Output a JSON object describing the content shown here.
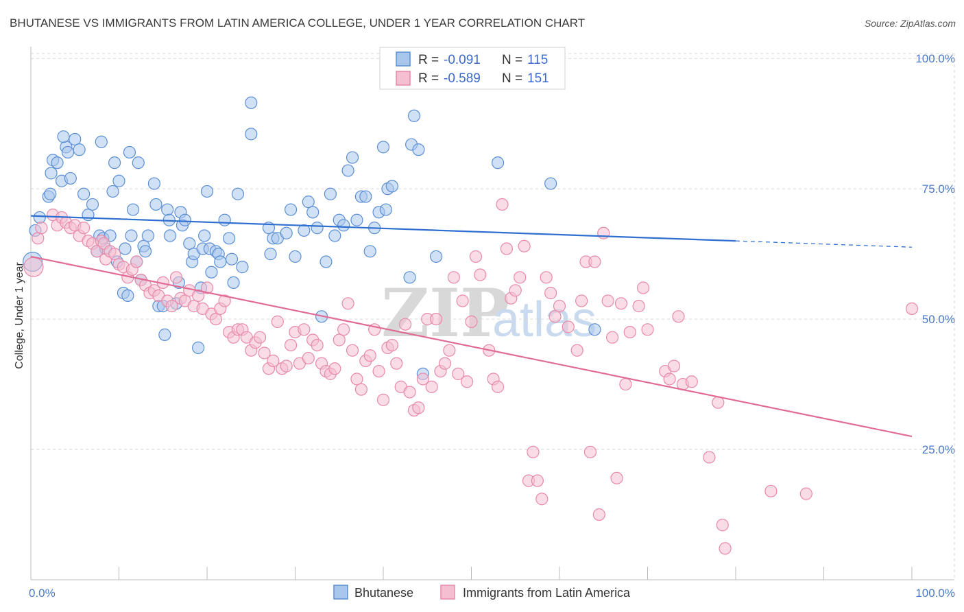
{
  "title": "BHUTANESE VS IMMIGRANTS FROM LATIN AMERICA COLLEGE, UNDER 1 YEAR CORRELATION CHART",
  "source": "Source: ZipAtlas.com",
  "watermark": {
    "zip": "ZIP",
    "atlas": "atlas"
  },
  "colors": {
    "blue": "#5b8fd4",
    "blue_fill": "#a9c6ec",
    "blue_line": "#2f6fd0",
    "pink": "#e889a8",
    "pink_fill": "#f4bfd1",
    "pink_line": "#e06b96",
    "grid": "#d6d6d6",
    "tick_text": "#4a78c8"
  },
  "legend": {
    "r_label": "R =",
    "n_label": "N =",
    "rows": [
      {
        "r": "-0.091",
        "n": "115",
        "series": "blue"
      },
      {
        "r": "-0.589",
        "n": "151",
        "series": "pink"
      }
    ]
  },
  "bottom_legend": [
    "Bhutanese",
    "Immigrants from Latin America"
  ],
  "chart_data": {
    "type": "scatter",
    "title": "BHUTANESE VS IMMIGRANTS FROM LATIN AMERICA COLLEGE, UNDER 1 YEAR CORRELATION CHART",
    "xlabel": "",
    "ylabel": "College, Under 1 year",
    "xlim": [
      0,
      100
    ],
    "ylim": [
      0,
      102
    ],
    "x_tick_labels": [
      "0.0%",
      "100.0%"
    ],
    "y_tick_labels": [
      "25.0%",
      "50.0%",
      "75.0%",
      "100.0%"
    ],
    "y_ticks": [
      25,
      50,
      75,
      100
    ],
    "grid": true,
    "legend_placement": "top-center",
    "series": [
      {
        "name": "Bhutanese",
        "color": "blue",
        "r": -0.091,
        "n": 115,
        "trend": {
          "x0": 0,
          "y0": 69.8,
          "x1": 80,
          "y1": 65.0,
          "dash_to": 100,
          "dash_y": 63.8
        },
        "points": [
          [
            0.2,
            61
          ],
          [
            0.5,
            67
          ],
          [
            1,
            69.5
          ],
          [
            2,
            73.5
          ],
          [
            2.2,
            74
          ],
          [
            2.3,
            78
          ],
          [
            2.5,
            80.5
          ],
          [
            3,
            80
          ],
          [
            3.5,
            76.5
          ],
          [
            4,
            83
          ],
          [
            3.7,
            85
          ],
          [
            4.2,
            82
          ],
          [
            4.5,
            77
          ],
          [
            5,
            84.5
          ],
          [
            5.5,
            82.5
          ],
          [
            6,
            74
          ],
          [
            6.5,
            70
          ],
          [
            7,
            72
          ],
          [
            7.5,
            63
          ],
          [
            7.8,
            66
          ],
          [
            8,
            84
          ],
          [
            8.5,
            63.5
          ],
          [
            8.2,
            65.5
          ],
          [
            9,
            66
          ],
          [
            9.3,
            74.5
          ],
          [
            9.5,
            80
          ],
          [
            9.8,
            61
          ],
          [
            10,
            76.5
          ],
          [
            10.5,
            55
          ],
          [
            10.7,
            63.5
          ],
          [
            11,
            54.5
          ],
          [
            11.2,
            82
          ],
          [
            11.4,
            66
          ],
          [
            11.6,
            71
          ],
          [
            12,
            61
          ],
          [
            12.2,
            80
          ],
          [
            12.5,
            57.5
          ],
          [
            12.8,
            64
          ],
          [
            13,
            63
          ],
          [
            13.3,
            66
          ],
          [
            14,
            76
          ],
          [
            14.2,
            72
          ],
          [
            14.5,
            52.5
          ],
          [
            15,
            52.5
          ],
          [
            15.2,
            47
          ],
          [
            15.5,
            71
          ],
          [
            15.7,
            69
          ],
          [
            15.8,
            66
          ],
          [
            16.5,
            53
          ],
          [
            16.8,
            57
          ],
          [
            17,
            70.5
          ],
          [
            17.2,
            68
          ],
          [
            17.5,
            69
          ],
          [
            18,
            64.5
          ],
          [
            18.3,
            61
          ],
          [
            18.5,
            62.5
          ],
          [
            19,
            44.5
          ],
          [
            19.3,
            56
          ],
          [
            19.5,
            63.5
          ],
          [
            19.7,
            66
          ],
          [
            20,
            74.5
          ],
          [
            20.3,
            63.5
          ],
          [
            20.5,
            59
          ],
          [
            21,
            63
          ],
          [
            21.3,
            62.5
          ],
          [
            21.5,
            61
          ],
          [
            22,
            69
          ],
          [
            22.5,
            65.5
          ],
          [
            22.8,
            61.5
          ],
          [
            23,
            57
          ],
          [
            23.5,
            74
          ],
          [
            24,
            60
          ],
          [
            25,
            85.5
          ],
          [
            25,
            91.5
          ],
          [
            27,
            67.5
          ],
          [
            27.2,
            62.5
          ],
          [
            27.5,
            65.5
          ],
          [
            28,
            65.5
          ],
          [
            29,
            66.5
          ],
          [
            29.5,
            71
          ],
          [
            30,
            62
          ],
          [
            31,
            67
          ],
          [
            31.5,
            72.5
          ],
          [
            32,
            70.5
          ],
          [
            32.5,
            67.5
          ],
          [
            33,
            50.5
          ],
          [
            33.5,
            61
          ],
          [
            34,
            74
          ],
          [
            34.5,
            66
          ],
          [
            35,
            69
          ],
          [
            35.5,
            68
          ],
          [
            36,
            78.5
          ],
          [
            36.5,
            81
          ],
          [
            37,
            69
          ],
          [
            37.5,
            73.5
          ],
          [
            38,
            73.5
          ],
          [
            38.5,
            63
          ],
          [
            39,
            67.5
          ],
          [
            39.5,
            70.5
          ],
          [
            40,
            83
          ],
          [
            40.3,
            71
          ],
          [
            40.5,
            75
          ],
          [
            41,
            75.5
          ],
          [
            43,
            58
          ],
          [
            43.2,
            83.5
          ],
          [
            43.5,
            89
          ],
          [
            44,
            82.5
          ],
          [
            44.5,
            39.5
          ],
          [
            46,
            62
          ],
          [
            53,
            80
          ],
          [
            59,
            76
          ],
          [
            64,
            48
          ]
        ]
      },
      {
        "name": "Immigrants from Latin America",
        "color": "pink",
        "r": -0.589,
        "n": 151,
        "trend": {
          "x0": 0,
          "y0": 62,
          "x1": 100,
          "y1": 27.5
        },
        "points": [
          [
            0.3,
            60
          ],
          [
            0.8,
            65.5
          ],
          [
            1.2,
            67.5
          ],
          [
            2.5,
            70
          ],
          [
            3,
            68
          ],
          [
            3.5,
            69.5
          ],
          [
            4,
            68.5
          ],
          [
            4.5,
            67.5
          ],
          [
            5,
            68
          ],
          [
            5.5,
            66
          ],
          [
            6,
            67.5
          ],
          [
            6.5,
            65
          ],
          [
            7,
            64.5
          ],
          [
            7.5,
            63
          ],
          [
            8,
            65
          ],
          [
            8.3,
            64.5
          ],
          [
            8.5,
            61.5
          ],
          [
            9,
            63
          ],
          [
            9.5,
            62.5
          ],
          [
            10,
            60.5
          ],
          [
            10.5,
            60
          ],
          [
            11,
            58
          ],
          [
            11.5,
            59.5
          ],
          [
            12,
            61
          ],
          [
            12.5,
            57.5
          ],
          [
            13,
            56.5
          ],
          [
            13.5,
            55
          ],
          [
            14,
            55.5
          ],
          [
            14.5,
            54.5
          ],
          [
            15,
            57
          ],
          [
            15.5,
            53.5
          ],
          [
            16,
            52.5
          ],
          [
            16.5,
            58
          ],
          [
            17,
            54
          ],
          [
            17.5,
            53.5
          ],
          [
            18,
            55.5
          ],
          [
            18.5,
            52.5
          ],
          [
            19,
            54.5
          ],
          [
            19.5,
            52
          ],
          [
            20,
            56
          ],
          [
            20.5,
            51
          ],
          [
            21,
            50
          ],
          [
            21.5,
            52
          ],
          [
            22,
            53.5
          ],
          [
            22.5,
            47.5
          ],
          [
            23,
            46.5
          ],
          [
            23.5,
            48
          ],
          [
            24,
            48
          ],
          [
            24.5,
            46.5
          ],
          [
            25,
            44
          ],
          [
            25.5,
            45.5
          ],
          [
            26,
            46.5
          ],
          [
            26.5,
            43.5
          ],
          [
            27,
            40.5
          ],
          [
            27.5,
            42
          ],
          [
            28,
            49.5
          ],
          [
            28.5,
            40.5
          ],
          [
            29,
            41
          ],
          [
            29.5,
            45
          ],
          [
            30,
            47.5
          ],
          [
            30.5,
            41.5
          ],
          [
            31,
            48
          ],
          [
            31.5,
            42.5
          ],
          [
            32,
            46
          ],
          [
            32.5,
            45
          ],
          [
            33,
            41.5
          ],
          [
            33.5,
            40
          ],
          [
            34,
            39.5
          ],
          [
            34.5,
            40.5
          ],
          [
            35,
            46
          ],
          [
            35.5,
            48
          ],
          [
            36,
            53
          ],
          [
            36.5,
            44
          ],
          [
            37,
            38.5
          ],
          [
            37.5,
            36.5
          ],
          [
            38,
            42
          ],
          [
            38.5,
            43
          ],
          [
            39,
            48
          ],
          [
            39.5,
            40
          ],
          [
            40,
            34.5
          ],
          [
            40.5,
            44.5
          ],
          [
            41,
            45
          ],
          [
            41.5,
            41.5
          ],
          [
            42,
            37
          ],
          [
            42.5,
            49
          ],
          [
            43,
            36
          ],
          [
            43.5,
            32.5
          ],
          [
            44,
            33
          ],
          [
            44.5,
            38.5
          ],
          [
            45,
            50
          ],
          [
            45.5,
            37
          ],
          [
            46,
            50
          ],
          [
            46.5,
            40
          ],
          [
            47,
            41.5
          ],
          [
            47.5,
            44
          ],
          [
            48,
            58
          ],
          [
            48.5,
            39.5
          ],
          [
            49,
            53.5
          ],
          [
            49.5,
            38
          ],
          [
            50,
            49.5
          ],
          [
            50.5,
            62
          ],
          [
            51,
            58.5
          ],
          [
            52,
            44
          ],
          [
            52.5,
            38.5
          ],
          [
            53,
            37
          ],
          [
            53.5,
            72
          ],
          [
            54,
            63.5
          ],
          [
            54.5,
            54
          ],
          [
            55,
            55.5
          ],
          [
            55.5,
            58
          ],
          [
            56,
            64
          ],
          [
            56.5,
            19
          ],
          [
            57,
            24.5
          ],
          [
            57.5,
            19
          ],
          [
            58,
            15.5
          ],
          [
            58.5,
            58
          ],
          [
            59,
            55
          ],
          [
            59.5,
            50.5
          ],
          [
            60,
            52.5
          ],
          [
            61,
            48.5
          ],
          [
            62,
            44
          ],
          [
            62.5,
            53.5
          ],
          [
            63,
            61
          ],
          [
            63.5,
            24.5
          ],
          [
            64,
            61
          ],
          [
            64.5,
            12.5
          ],
          [
            65,
            66.5
          ],
          [
            65.5,
            53.5
          ],
          [
            66,
            46.5
          ],
          [
            66.5,
            19.5
          ],
          [
            67,
            53
          ],
          [
            67.5,
            37.5
          ],
          [
            68,
            47.5
          ],
          [
            69,
            52.5
          ],
          [
            69.5,
            56
          ],
          [
            70,
            48
          ],
          [
            72,
            40
          ],
          [
            72.5,
            38.5
          ],
          [
            73,
            41
          ],
          [
            73.5,
            50.5
          ],
          [
            74,
            37.5
          ],
          [
            75,
            38
          ],
          [
            77,
            23.5
          ],
          [
            78,
            34
          ],
          [
            78.5,
            10.5
          ],
          [
            78.8,
            6
          ],
          [
            84,
            17
          ],
          [
            88,
            16.5
          ],
          [
            100,
            52
          ]
        ]
      }
    ]
  }
}
